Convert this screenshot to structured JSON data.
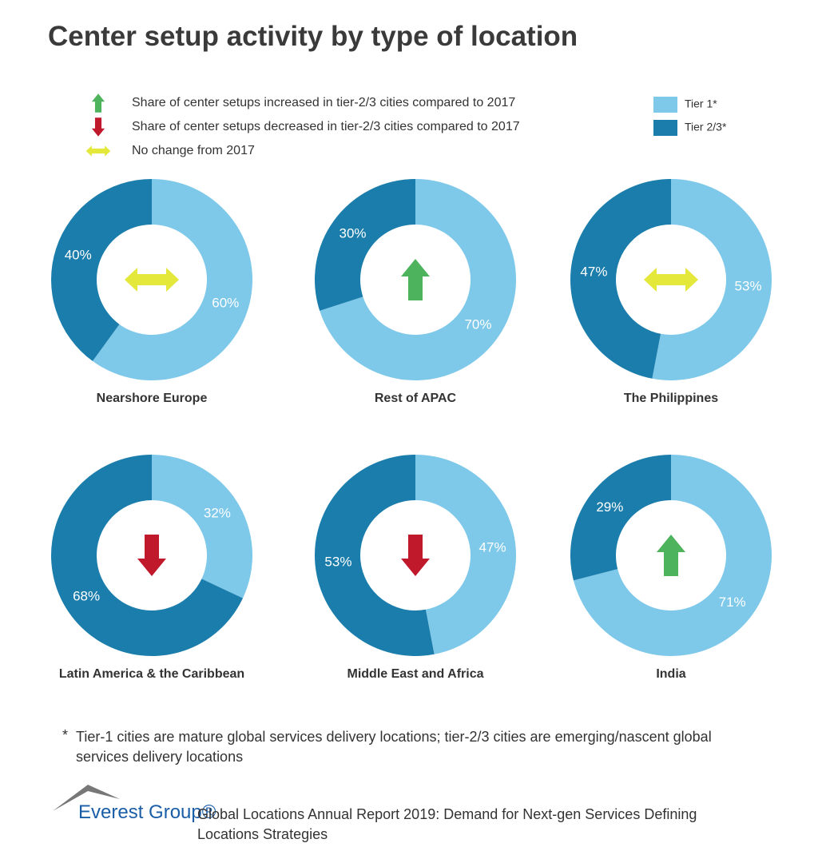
{
  "title": "Center setup activity by type of location",
  "indicator_legend": [
    {
      "icon": "up",
      "text": "Share of center setups increased in tier-2/3 cities compared to 2017"
    },
    {
      "icon": "down",
      "text": "Share of center setups decreased in tier-2/3 cities compared to 2017"
    },
    {
      "icon": "both",
      "text": "No change from 2017"
    }
  ],
  "categories": [
    "Tier 1*",
    "Tier 2/3*"
  ],
  "colors": [
    "#7ec8ea",
    "#1b7dab"
  ],
  "chart_data": [
    {
      "type": "donut",
      "title": "Nearshore Europe",
      "values": [
        60,
        40
      ],
      "value_labels": [
        "60%",
        "40%"
      ],
      "indicator": "both"
    },
    {
      "type": "donut",
      "title": "Rest of APAC",
      "values": [
        70,
        30
      ],
      "value_labels": [
        "70%",
        "30%"
      ],
      "indicator": "up"
    },
    {
      "type": "donut",
      "title": "The Philippines",
      "values": [
        53,
        47
      ],
      "value_labels": [
        "53%",
        "47%"
      ],
      "indicator": "both"
    },
    {
      "type": "donut",
      "title": "Latin America & the Caribbean",
      "values": [
        32,
        68
      ],
      "value_labels": [
        "32%",
        "68%"
      ],
      "indicator": "down"
    },
    {
      "type": "donut",
      "title": "Middle East and Africa",
      "values": [
        47,
        53
      ],
      "value_labels": [
        "47%",
        "53%"
      ],
      "indicator": "down"
    },
    {
      "type": "donut",
      "title": "India",
      "values": [
        71,
        29
      ],
      "value_labels": [
        "71%",
        "29%"
      ],
      "indicator": "up"
    }
  ],
  "footnote_mark": "*",
  "footnote": "Tier-1 cities are mature global services delivery locations; tier-2/3 cities are emerging/nascent global services delivery locations",
  "logo": "Everest Group®",
  "source": "Global Locations Annual Report 2019: Demand for Next-gen Services Defining Locations Strategies"
}
